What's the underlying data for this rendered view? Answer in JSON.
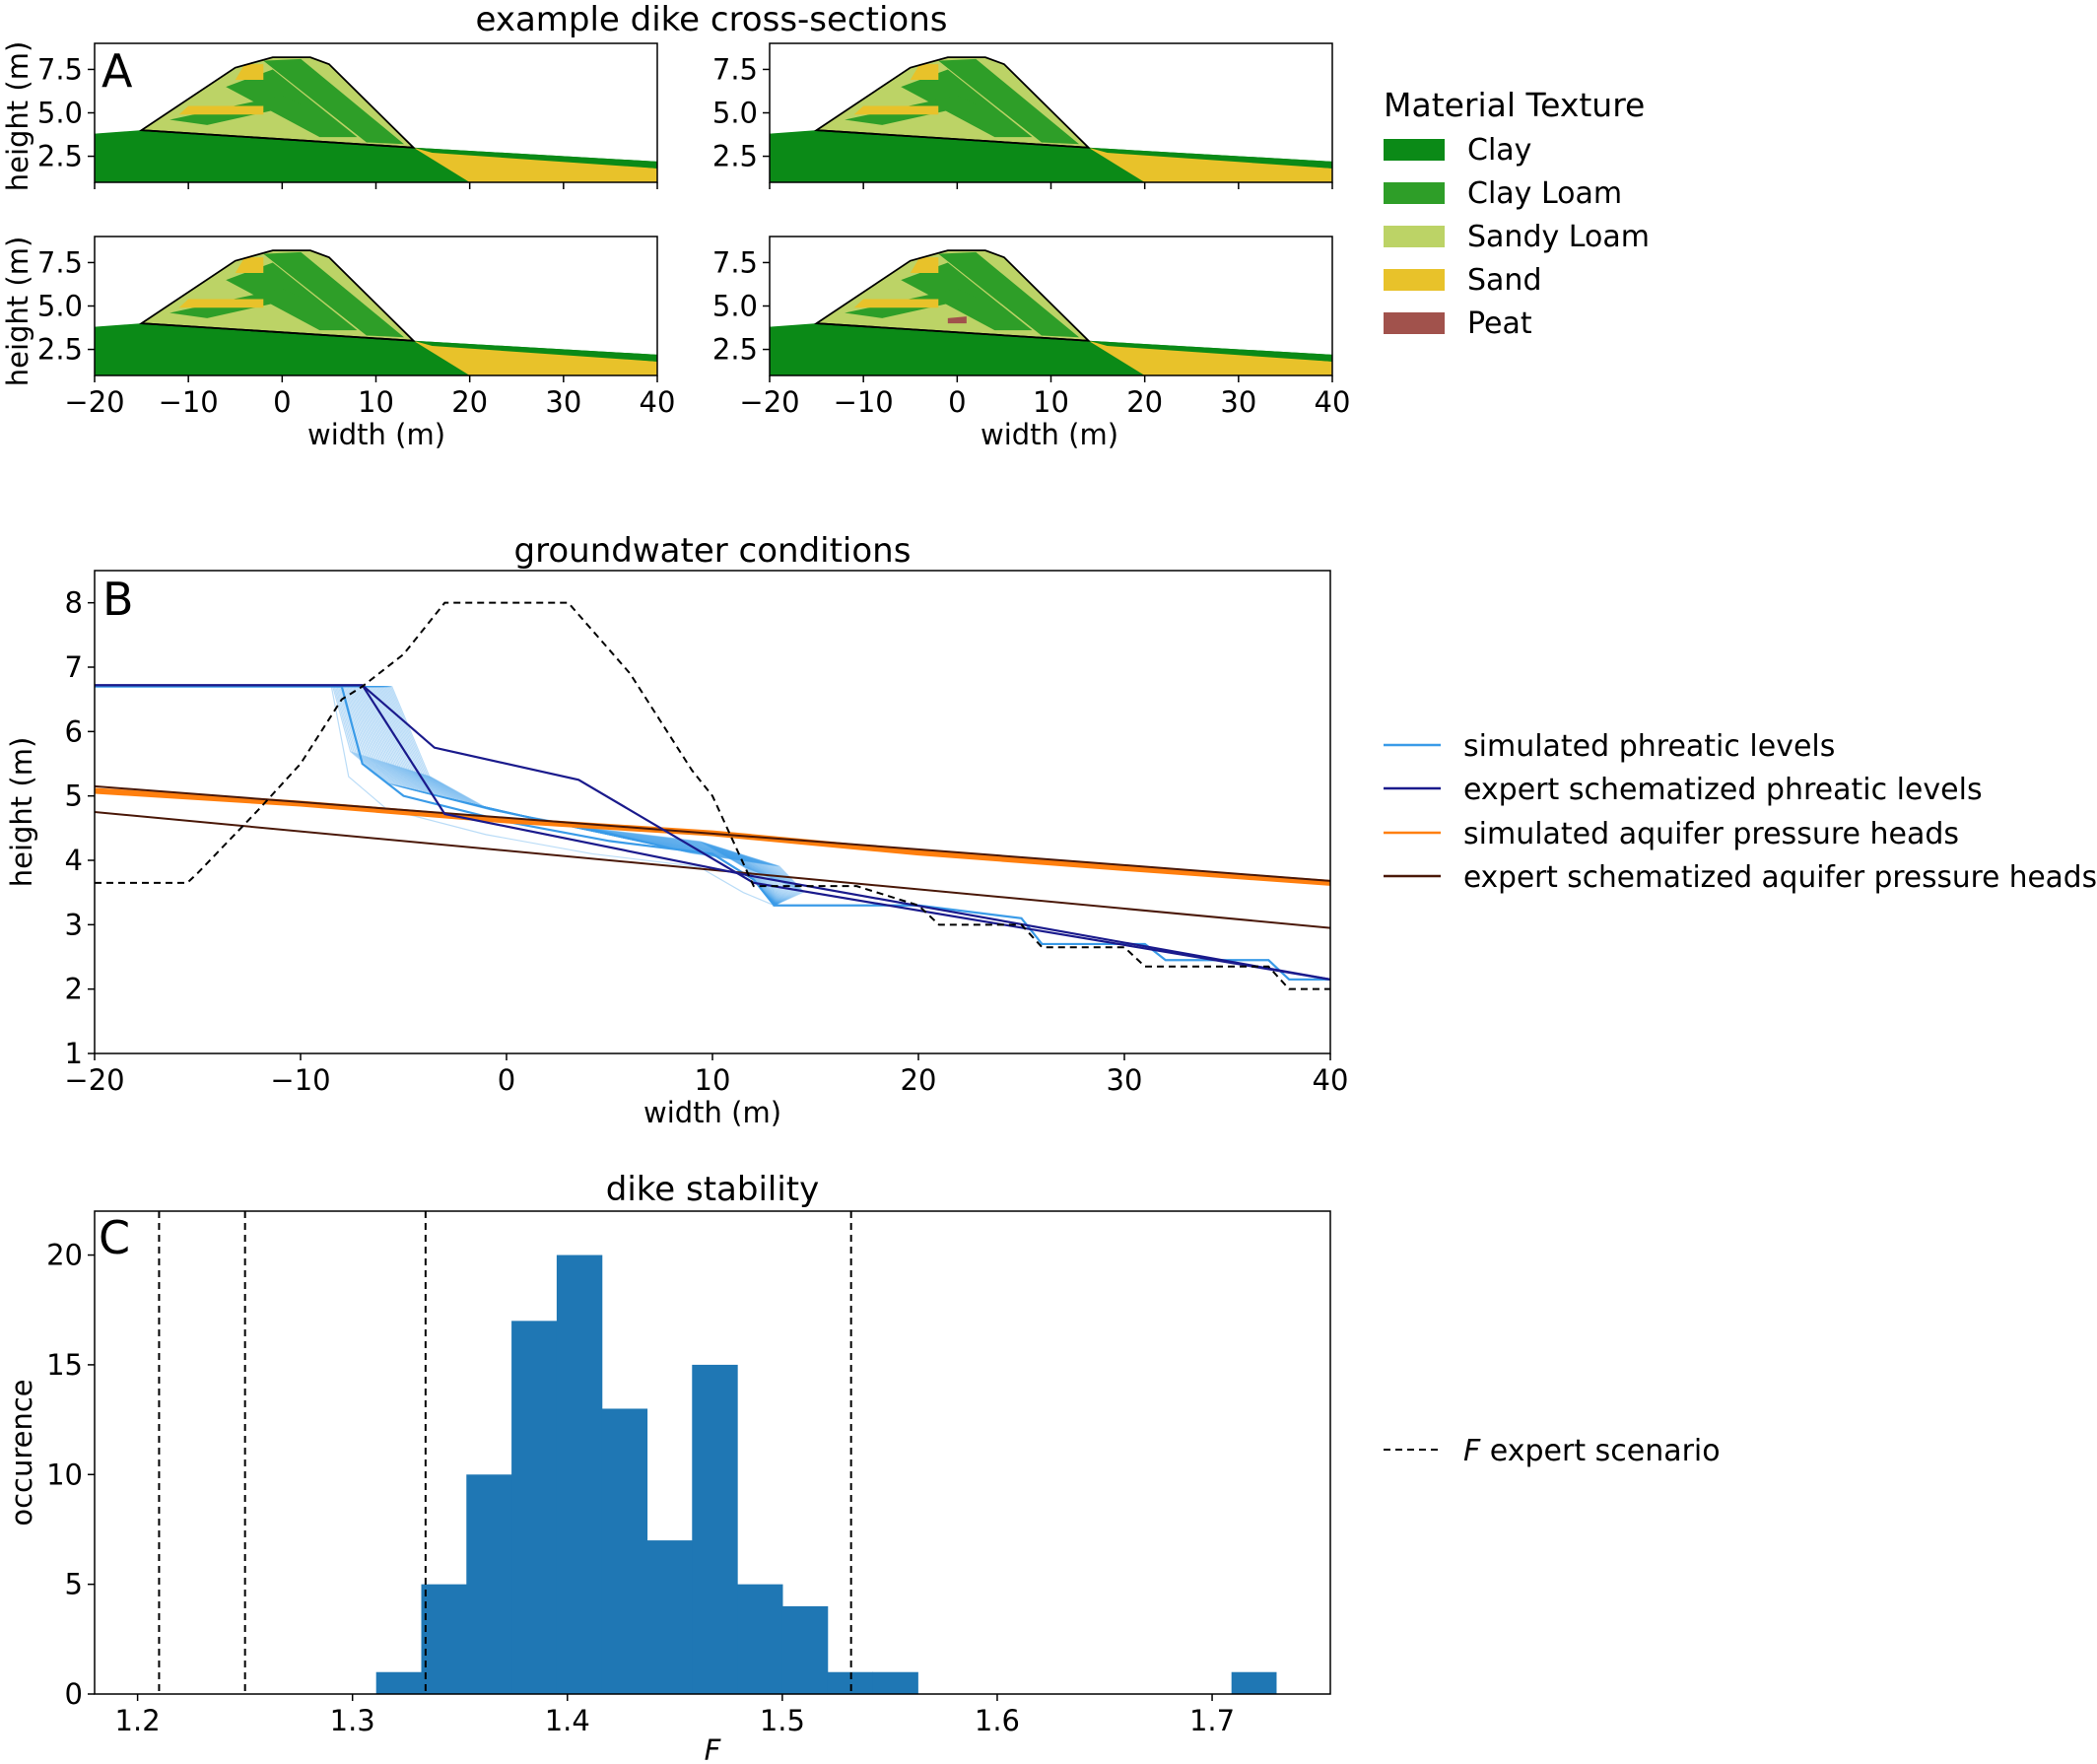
{
  "panel_a": {
    "title": "example dike cross-sections",
    "letter": "A",
    "ylabel": "height (m)",
    "xlabel": "width (m)",
    "xticks": [
      "−20",
      "−10",
      "0",
      "10",
      "20",
      "30",
      "40"
    ],
    "yticks": [
      "7.5",
      "5.0",
      "2.5"
    ],
    "legend_title": "Material Texture",
    "legend_items": [
      {
        "label": "Clay",
        "color": "#0b8a17"
      },
      {
        "label": "Clay Loam",
        "color": "#2e9e28"
      },
      {
        "label": "Sandy Loam",
        "color": "#bcd366"
      },
      {
        "label": "Sand",
        "color": "#e8c22a"
      },
      {
        "label": "Peat",
        "color": "#a1524c"
      }
    ]
  },
  "panel_b": {
    "title": "groundwater conditions",
    "letter": "B",
    "ylabel": "height (m)",
    "xlabel": "width (m)",
    "xticks": [
      "−20",
      "−10",
      "0",
      "10",
      "20",
      "30",
      "40"
    ],
    "yticks": [
      "1",
      "2",
      "3",
      "4",
      "5",
      "6",
      "7",
      "8"
    ],
    "legend_items": [
      {
        "label": "simulated phreatic levels",
        "color": "#3a9be8"
      },
      {
        "label": "expert schematized phreatic levels",
        "color": "#1a1a8c"
      },
      {
        "label": "simulated aquifer pressure heads",
        "color": "#ff7f0e"
      },
      {
        "label": "expert schematized aquifer pressure heads",
        "color": "#4a1808"
      }
    ]
  },
  "panel_c": {
    "title": "dike stability",
    "letter": "C",
    "ylabel": "occurence",
    "xlabel": "F",
    "xticks": [
      "1.2",
      "1.3",
      "1.4",
      "1.5",
      "1.6",
      "1.7"
    ],
    "yticks": [
      "0",
      "5",
      "10",
      "15",
      "20"
    ],
    "legend_items": [
      {
        "label_prefix": "F",
        "label": " expert scenario"
      }
    ]
  },
  "chart_data": [
    {
      "type": "area",
      "panel": "A",
      "title": "example dike cross-sections",
      "xlabel": "width (m)",
      "ylabel": "height (m)",
      "xlim": [
        -20,
        40
      ],
      "ylim": [
        1,
        9
      ],
      "subplots": 4,
      "dike_outline": {
        "x": [
          -20,
          -15,
          -5,
          -1,
          3,
          5,
          14,
          40
        ],
        "y": [
          3.8,
          4.0,
          7.6,
          8.2,
          8.2,
          7.8,
          3.0,
          2.2
        ]
      },
      "legend": [
        "Clay",
        "Clay Loam",
        "Sandy Loam",
        "Sand",
        "Peat"
      ]
    },
    {
      "type": "line",
      "panel": "B",
      "title": "groundwater conditions",
      "xlabel": "width (m)",
      "ylabel": "height (m)",
      "xlim": [
        -20,
        40
      ],
      "ylim": [
        1,
        8.5
      ],
      "series": [
        {
          "name": "dike surface",
          "style": "dashed",
          "x": [
            -20,
            -15.5,
            -15,
            -12,
            -10,
            -8,
            -7,
            -5,
            -3,
            0,
            3,
            6,
            9,
            10,
            12,
            14,
            17,
            20,
            21,
            25,
            26,
            30,
            31,
            37,
            38,
            40
          ],
          "y": [
            3.65,
            3.65,
            3.8,
            4.8,
            5.5,
            6.5,
            6.7,
            7.2,
            8.0,
            8.0,
            8.0,
            6.9,
            5.4,
            5.0,
            3.6,
            3.6,
            3.6,
            3.3,
            3.0,
            3.0,
            2.65,
            2.65,
            2.35,
            2.35,
            2.0,
            2.0
          ]
        },
        {
          "name": "expert schematized phreatic levels",
          "x": [
            -20,
            -7,
            -3.5,
            3.5,
            12,
            40
          ],
          "y": [
            6.72,
            6.72,
            5.75,
            5.25,
            3.65,
            2.15
          ]
        },
        {
          "name": "expert schematized phreatic levels",
          "x": [
            -20,
            -7,
            -3,
            12,
            40
          ],
          "y": [
            6.72,
            6.72,
            4.72,
            3.75,
            2.15
          ]
        },
        {
          "name": "simulated aquifer pressure heads",
          "x": [
            -20,
            -10,
            0,
            10,
            20,
            30,
            40
          ],
          "y": [
            5.08,
            4.88,
            4.62,
            4.42,
            4.12,
            3.88,
            3.65
          ]
        },
        {
          "name": "expert schematized aquifer pressure heads",
          "x": [
            -20,
            40
          ],
          "y": [
            5.15,
            3.68
          ]
        },
        {
          "name": "expert schematized aquifer pressure heads",
          "x": [
            -20,
            40
          ],
          "y": [
            4.75,
            2.95
          ]
        },
        {
          "name": "simulated phreatic levels",
          "x": [
            -20,
            -8,
            -7,
            -5,
            0,
            5,
            10,
            12,
            13,
            20,
            25,
            26,
            31,
            32,
            37,
            38,
            40
          ],
          "y": [
            6.7,
            6.7,
            5.5,
            5.0,
            4.6,
            4.3,
            4.1,
            3.7,
            3.3,
            3.3,
            3.1,
            2.7,
            2.7,
            2.45,
            2.45,
            2.15,
            2.15
          ]
        }
      ]
    },
    {
      "type": "bar",
      "panel": "C",
      "title": "dike stability",
      "xlabel": "F",
      "ylabel": "occurence",
      "xlim": [
        1.18,
        1.755
      ],
      "ylim": [
        0,
        22
      ],
      "bin_edges": [
        1.311,
        1.332,
        1.353,
        1.374,
        1.395,
        1.416,
        1.437,
        1.458,
        1.479,
        1.5,
        1.521,
        1.542,
        1.563
      ],
      "values": [
        1,
        5,
        10,
        17,
        20,
        13,
        7,
        15,
        5,
        4,
        1,
        1
      ],
      "extra_bars": [
        {
          "x0": 1.709,
          "x1": 1.73,
          "value": 1
        }
      ],
      "expert_scenario_F": [
        1.21,
        1.25,
        1.334,
        1.532
      ]
    }
  ]
}
